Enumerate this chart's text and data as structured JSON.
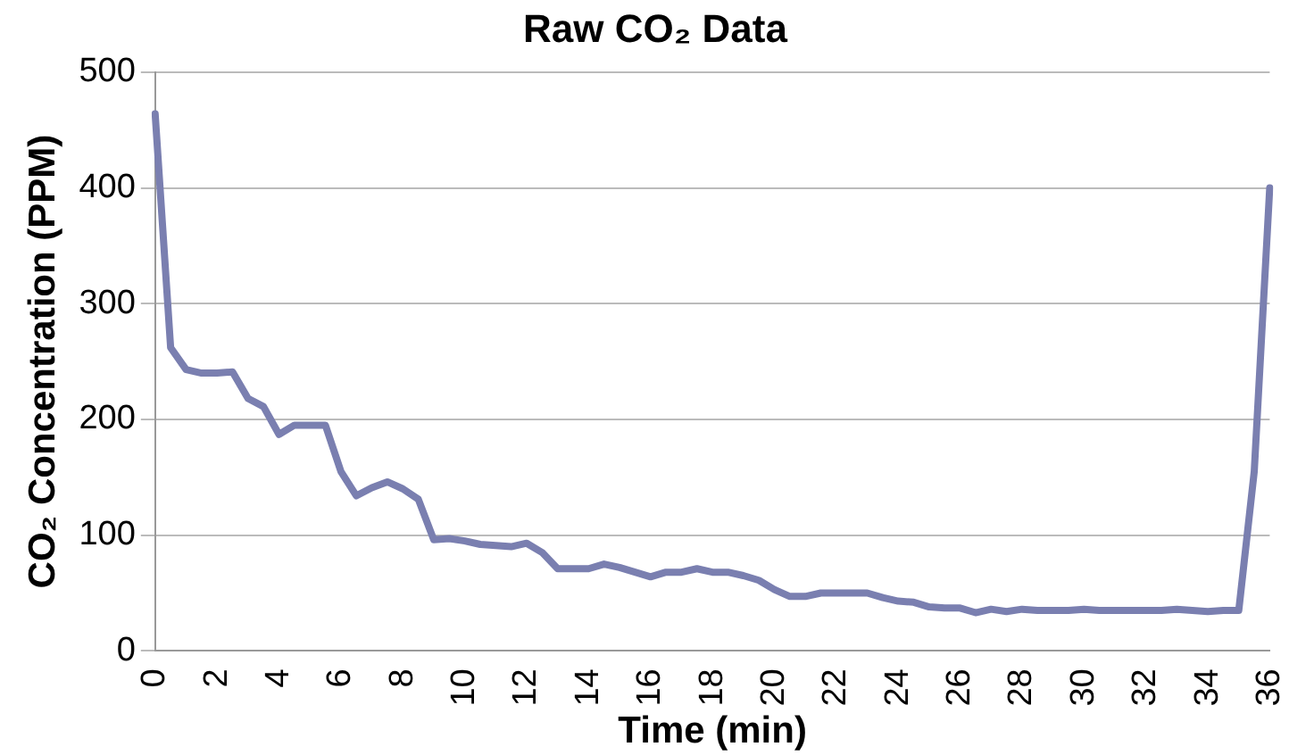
{
  "chart_data": {
    "type": "line",
    "title": "Raw CO₂ Data",
    "xlabel": "Time (min)",
    "ylabel": "CO₂ Concentration (PPM)",
    "categories": [
      "0",
      null,
      null,
      null,
      "2",
      null,
      null,
      null,
      "4",
      null,
      null,
      null,
      "6",
      null,
      null,
      null,
      "8",
      null,
      null,
      null,
      "10",
      null,
      null,
      null,
      "12",
      null,
      null,
      null,
      "14",
      null,
      null,
      null,
      "16",
      null,
      null,
      null,
      "18",
      null,
      null,
      null,
      "20",
      null,
      null,
      null,
      "22",
      null,
      null,
      null,
      "24",
      null,
      null,
      null,
      "26",
      null,
      null,
      null,
      "28",
      null,
      null,
      null,
      "30",
      null,
      null,
      null,
      "32",
      null,
      null,
      null,
      "34",
      null,
      null,
      null,
      "36"
    ],
    "series": [
      {
        "color": "#7a7fb0",
        "values": [
          464,
          262,
          243,
          240,
          240,
          241,
          218,
          211,
          187,
          195,
          195,
          195,
          155,
          134,
          141,
          146,
          140,
          131,
          96,
          97,
          95,
          92,
          91,
          90,
          93,
          85,
          71,
          71,
          71,
          75,
          72,
          68,
          64,
          68,
          68,
          71,
          68,
          68,
          65,
          61,
          53,
          47,
          47,
          50,
          50,
          50,
          50,
          46,
          43,
          42,
          38,
          37,
          37,
          33,
          36,
          34,
          36,
          35,
          35,
          35,
          36,
          35,
          35,
          35,
          35,
          35,
          36,
          35,
          34,
          35,
          35,
          155,
          400
        ]
      }
    ],
    "ylim": [
      0,
      500
    ],
    "yticks": [
      0,
      100,
      200,
      300,
      400,
      500
    ],
    "grid": "y",
    "marker": "none",
    "line_style": "solid",
    "legend": false
  }
}
